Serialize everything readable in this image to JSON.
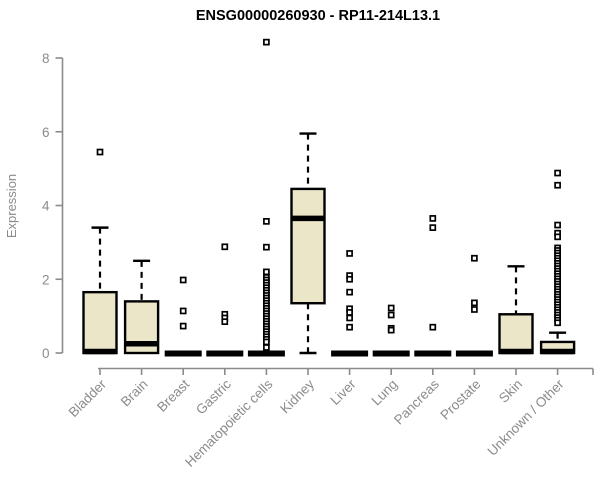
{
  "page": {
    "background": "#ffffff"
  },
  "chart_data": {
    "type": "boxplot",
    "title": "ENSG00000260930 - RP11-214L13.1",
    "xlabel": "",
    "ylabel": "Expression",
    "ylim": [
      0,
      8.6
    ],
    "yticks": [
      0,
      2,
      4,
      6,
      8
    ],
    "grid": false,
    "legend": "none",
    "categories": [
      "Bladder",
      "Brain",
      "Breast",
      "Gastric",
      "Hematopoietic cells",
      "Kidney",
      "Liver",
      "Lung",
      "Pancreas",
      "Prostate",
      "Skin",
      "Unknown / Other"
    ],
    "series": [
      {
        "category": "Bladder",
        "q1": 0,
        "median": 0,
        "q3": 1.65,
        "whisker_low": 0,
        "whisker_high": 3.4,
        "outliers": [
          5.45
        ]
      },
      {
        "category": "Brain",
        "q1": 0,
        "median": 0.25,
        "q3": 1.4,
        "whisker_low": 0,
        "whisker_high": 2.5,
        "outliers": []
      },
      {
        "category": "Breast",
        "q1": 0,
        "median": 0,
        "q3": 0,
        "whisker_low": 0,
        "whisker_high": 0,
        "outliers": [
          1.98,
          1.14,
          0.73
        ]
      },
      {
        "category": "Gastric",
        "q1": 0,
        "median": 0,
        "q3": 0,
        "whisker_low": 0,
        "whisker_high": 0,
        "outliers": [
          2.88,
          1.05,
          0.95,
          0.85
        ]
      },
      {
        "category": "Hematopoietic cells",
        "q1": 0,
        "median": 0,
        "q3": 0,
        "whisker_low": 0,
        "whisker_high": 0,
        "outliers": [
          8.43,
          3.57,
          2.87,
          2.2,
          2.05,
          1.98,
          1.91,
          1.84,
          1.77,
          1.7,
          1.63,
          1.56,
          1.49,
          1.42,
          1.35,
          1.28,
          1.21,
          1.14,
          1.07,
          1.0,
          0.93,
          0.86,
          0.79,
          0.72,
          0.65,
          0.58,
          0.51,
          0.44,
          0.37,
          0.3,
          0.15
        ]
      },
      {
        "category": "Kidney",
        "q1": 1.35,
        "median": 3.65,
        "q3": 4.45,
        "whisker_low": 0,
        "whisker_high": 5.95,
        "outliers": []
      },
      {
        "category": "Liver",
        "q1": 0,
        "median": 0,
        "q3": 0,
        "whisker_low": 0,
        "whisker_high": 0,
        "outliers": [
          2.7,
          2.1,
          2.0,
          1.65,
          1.2,
          1.1,
          0.95,
          0.7
        ]
      },
      {
        "category": "Lung",
        "q1": 0,
        "median": 0,
        "q3": 0,
        "whisker_low": 0,
        "whisker_high": 0,
        "outliers": [
          1.22,
          1.03,
          0.67,
          0.62
        ]
      },
      {
        "category": "Pancreas",
        "q1": 0,
        "median": 0,
        "q3": 0,
        "whisker_low": 0,
        "whisker_high": 0,
        "outliers": [
          3.65,
          3.4,
          0.7
        ]
      },
      {
        "category": "Prostate",
        "q1": 0,
        "median": 0,
        "q3": 0,
        "whisker_low": 0,
        "whisker_high": 0,
        "outliers": [
          2.57,
          1.36,
          1.18
        ]
      },
      {
        "category": "Skin",
        "q1": 0,
        "median": 0,
        "q3": 1.05,
        "whisker_low": 0,
        "whisker_high": 2.35,
        "outliers": []
      },
      {
        "category": "Unknown / Other",
        "q1": 0,
        "median": 0,
        "q3": 0.3,
        "whisker_low": 0,
        "whisker_high": 0.55,
        "outliers": [
          4.88,
          4.55,
          3.47,
          3.25,
          3.15,
          2.85,
          2.78,
          2.71,
          2.64,
          2.57,
          2.5,
          2.43,
          2.36,
          2.29,
          2.22,
          2.15,
          2.08,
          2.01,
          1.94,
          1.87,
          1.8,
          1.73,
          1.66,
          1.59,
          1.52,
          1.45,
          1.38,
          1.31,
          1.24,
          1.17,
          1.1,
          1.03,
          0.96,
          0.89,
          0.82
        ]
      }
    ],
    "colors": {
      "box_fill": "#ECE6C9",
      "box_stroke": "#000000",
      "median": "#000000",
      "outlier_stroke": "#000000",
      "outlier_fill": "#ffffff",
      "axis": "#8b8b8b",
      "title": "#000000"
    }
  }
}
